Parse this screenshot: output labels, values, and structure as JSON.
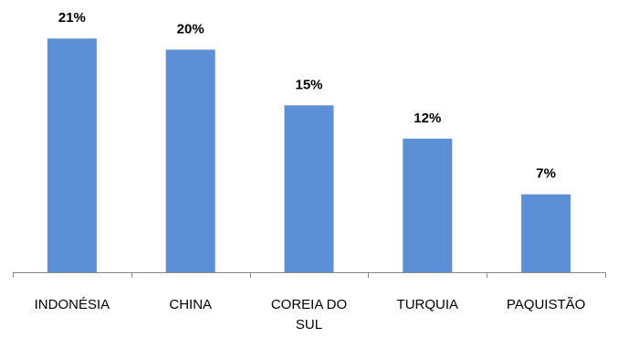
{
  "chart_data": {
    "type": "bar",
    "categories": [
      "INDONÉSIA",
      "CHINA",
      "COREIA DO SUL",
      "TURQUIA",
      "PAQUISTÃO"
    ],
    "values": [
      21,
      20,
      15,
      12,
      7
    ],
    "data_labels": [
      "21%",
      "20%",
      "15%",
      "12%",
      "7%"
    ],
    "unit": "%",
    "ylim": [
      0,
      22
    ],
    "grid": false,
    "legend": "none",
    "title": "",
    "xlabel": "",
    "ylabel": "",
    "bar_color": "#5B8FD6",
    "axis_color": "#888888"
  }
}
